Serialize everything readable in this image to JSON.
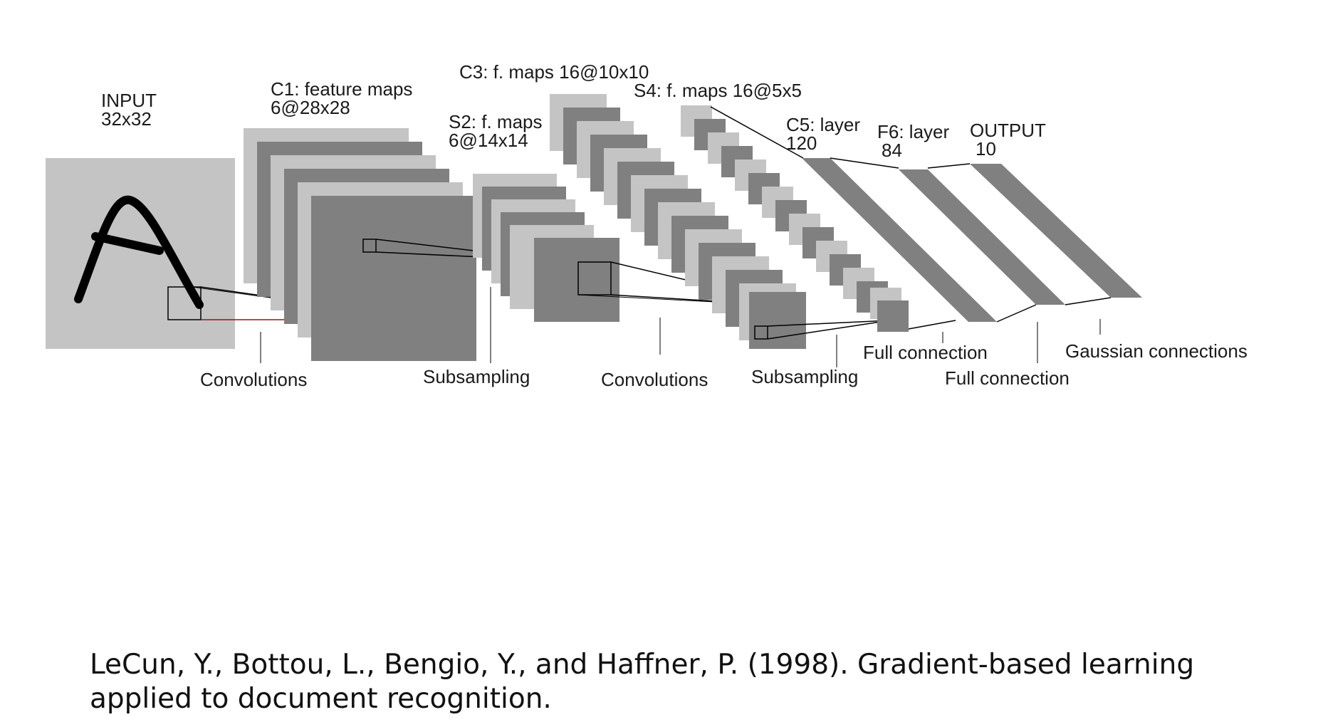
{
  "diagram": {
    "labels": {
      "input_title": "INPUT",
      "input_size": "32x32",
      "c1_title": "C1: feature maps",
      "c1_size": "6@28x28",
      "s2_title": "S2: f. maps",
      "s2_size": "6@14x14",
      "c3_title": "C3: f. maps 16@10x10",
      "s4_title": "S4: f. maps 16@5x5",
      "c5_title": "C5: layer",
      "c5_size": "120",
      "f6_title": "F6: layer",
      "f6_size": "84",
      "output_title": "OUTPUT",
      "output_size": "10"
    },
    "operations": {
      "conv1": "Convolutions",
      "sub1": "Subsampling",
      "conv2": "Convolutions",
      "sub2": "Subsampling",
      "full1": "Full connection",
      "full2": "Full connection",
      "gauss": "Gaussian connections"
    },
    "colors": {
      "light": "#c4c4c4",
      "dark": "#808080",
      "stroke": "#000000"
    }
  },
  "citation": "LeCun, Y., Bottou, L., Bengio, Y., and Haffner, P. (1998). Gradient-based learning applied to document recognition."
}
